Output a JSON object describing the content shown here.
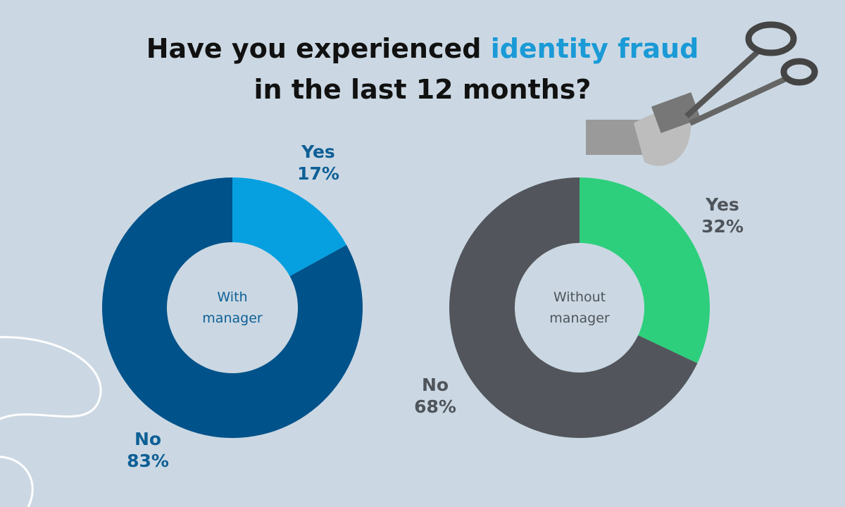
{
  "title": [
    "Have you experienced",
    "identity fraud",
    "in the last 12 months?"
  ],
  "chart_data": [
    {
      "type": "donut",
      "center_label": "With manager",
      "categories": [
        "Yes",
        "No"
      ],
      "values": [
        17,
        83
      ],
      "value_labels": [
        "17%",
        "83%"
      ],
      "colors": [
        "#06a0e0",
        "#00528a"
      ]
    },
    {
      "type": "donut",
      "center_label": "Without manager",
      "categories": [
        "Yes",
        "No"
      ],
      "values": [
        32,
        68
      ],
      "value_labels": [
        "32%",
        "68%"
      ],
      "colors": [
        "#2ecf7c",
        "#52565c"
      ]
    }
  ]
}
